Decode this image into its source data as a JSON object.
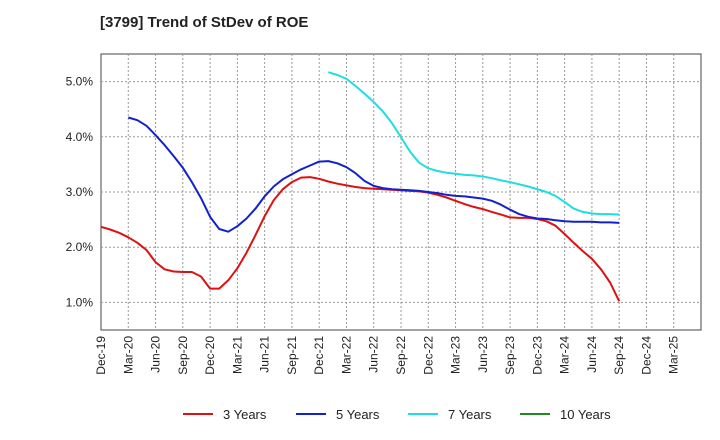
{
  "title": "[3799]  Trend of StDev of ROE",
  "chart_data": {
    "type": "line",
    "title": "[3799]  Trend of StDev of ROE",
    "xlabel": "",
    "ylabel": "",
    "x_ticks": [
      "Dec-19",
      "Mar-20",
      "Jun-20",
      "Sep-20",
      "Dec-20",
      "Mar-21",
      "Jun-21",
      "Sep-21",
      "Dec-21",
      "Mar-22",
      "Jun-22",
      "Sep-22",
      "Dec-22",
      "Mar-23",
      "Jun-23",
      "Sep-23",
      "Dec-23",
      "Mar-24",
      "Jun-24",
      "Sep-24",
      "Dec-24",
      "Mar-25"
    ],
    "y_ticks": [
      "1.0%",
      "2.0%",
      "3.0%",
      "4.0%",
      "5.0%"
    ],
    "y_tick_values": [
      1.0,
      2.0,
      3.0,
      4.0,
      5.0
    ],
    "ylim": [
      0.5,
      5.5
    ],
    "grid": true,
    "legend_position": "bottom",
    "series": [
      {
        "name": "3 Years",
        "color": "#dd1111",
        "values": [
          2.37,
          2.32,
          2.26,
          2.18,
          2.08,
          1.95,
          1.73,
          1.6,
          1.56,
          1.55,
          1.55,
          1.47,
          1.25,
          1.25,
          1.4,
          1.62,
          1.9,
          2.22,
          2.56,
          2.85,
          3.05,
          3.18,
          3.26,
          3.27,
          3.24,
          3.19,
          3.15,
          3.12,
          3.09,
          3.07,
          3.06,
          3.05,
          3.04,
          3.03,
          3.02,
          3.01,
          2.99,
          2.95,
          2.9,
          2.84,
          2.78,
          2.73,
          2.69,
          2.64,
          2.59,
          2.54,
          2.53,
          2.53,
          2.51,
          2.47,
          2.39,
          2.24,
          2.08,
          1.93,
          1.79,
          1.6,
          1.36,
          1.02
        ]
      },
      {
        "name": "5 Years",
        "color": "#1122cc",
        "values": [
          null,
          null,
          null,
          4.35,
          4.3,
          4.2,
          4.03,
          3.85,
          3.65,
          3.44,
          3.18,
          2.89,
          2.55,
          2.33,
          2.28,
          2.38,
          2.52,
          2.7,
          2.92,
          3.1,
          3.23,
          3.32,
          3.41,
          3.48,
          3.55,
          3.56,
          3.52,
          3.45,
          3.34,
          3.2,
          3.11,
          3.07,
          3.05,
          3.04,
          3.03,
          3.02,
          3.0,
          2.98,
          2.95,
          2.93,
          2.92,
          2.9,
          2.88,
          2.84,
          2.77,
          2.68,
          2.6,
          2.55,
          2.52,
          2.51,
          2.49,
          2.47,
          2.46,
          2.46,
          2.46,
          2.45,
          2.45,
          2.44
        ]
      },
      {
        "name": "7 Years",
        "color": "#22dddd",
        "values": [
          null,
          null,
          null,
          null,
          null,
          null,
          null,
          null,
          null,
          null,
          null,
          null,
          null,
          null,
          null,
          null,
          null,
          null,
          null,
          null,
          null,
          null,
          null,
          null,
          null,
          5.17,
          5.12,
          5.05,
          4.92,
          4.78,
          4.63,
          4.46,
          4.25,
          3.99,
          3.73,
          3.53,
          3.43,
          3.38,
          3.35,
          3.33,
          3.31,
          3.3,
          3.28,
          3.25,
          3.21,
          3.18,
          3.14,
          3.1,
          3.05,
          3.0,
          2.93,
          2.82,
          2.7,
          2.64,
          2.61,
          2.6,
          2.6,
          2.59
        ]
      },
      {
        "name": "10 Years",
        "color": "#228822",
        "values": []
      }
    ]
  }
}
